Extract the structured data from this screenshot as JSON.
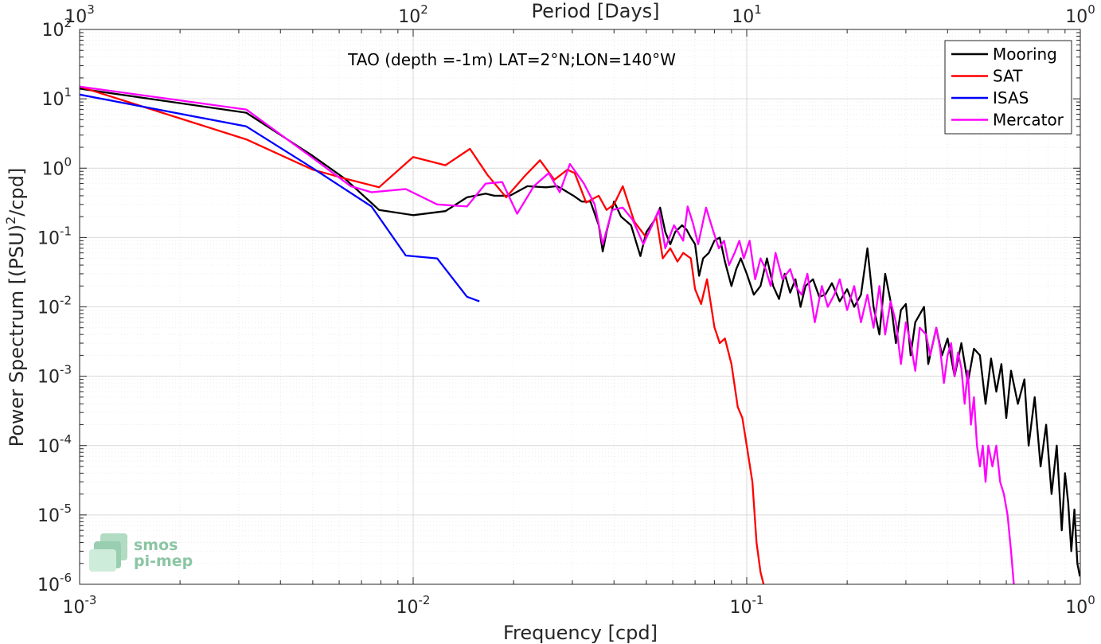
{
  "chart_data": {
    "type": "line",
    "title": "TAO (depth =-1m) LAT=2°N;LON=140°W",
    "xlabel": "Frequency [cpd]",
    "ylabel_parts": {
      "before": "Power Spectrum [(PSU)",
      "sup": "2",
      "after": "/cpd]"
    },
    "top_xlabel": "Period [Days]",
    "x_scale": "log",
    "y_scale": "log",
    "xlim": [
      0.001,
      1
    ],
    "ylim": [
      1e-06,
      100
    ],
    "grid": true,
    "minor_grid": true,
    "legend_position": "top-right",
    "x_ticks": [
      {
        "value": 0.001,
        "base": "10",
        "exp": "-3"
      },
      {
        "value": 0.01,
        "base": "10",
        "exp": "-2"
      },
      {
        "value": 0.1,
        "base": "10",
        "exp": "-1"
      },
      {
        "value": 1,
        "base": "10",
        "exp": "0"
      }
    ],
    "top_ticks": [
      {
        "value": 0.001,
        "base": "10",
        "exp": "3"
      },
      {
        "value": 0.01,
        "base": "10",
        "exp": "2"
      },
      {
        "value": 0.1,
        "base": "10",
        "exp": "1"
      },
      {
        "value": 1,
        "base": "10",
        "exp": "0"
      }
    ],
    "y_ticks": [
      {
        "value": 100,
        "base": "10",
        "exp": "2"
      },
      {
        "value": 10,
        "base": "10",
        "exp": "1"
      },
      {
        "value": 1,
        "base": "10",
        "exp": "0"
      },
      {
        "value": 0.1,
        "base": "10",
        "exp": "-1"
      },
      {
        "value": 0.01,
        "base": "10",
        "exp": "-2"
      },
      {
        "value": 0.001,
        "base": "10",
        "exp": "-3"
      },
      {
        "value": 0.0001,
        "base": "10",
        "exp": "-4"
      },
      {
        "value": 1e-05,
        "base": "10",
        "exp": "-5"
      },
      {
        "value": 1e-06,
        "base": "10",
        "exp": "-6"
      }
    ],
    "series": [
      {
        "name": "Mooring",
        "color": "#000000",
        "points": [
          [
            0.001,
            14
          ],
          [
            0.00316,
            6.3
          ],
          [
            0.005,
            1.5
          ],
          [
            0.00625,
            0.7
          ],
          [
            0.0079,
            0.25
          ],
          [
            0.01,
            0.21
          ],
          [
            0.0125,
            0.24
          ],
          [
            0.0145,
            0.38
          ],
          [
            0.0165,
            0.43
          ],
          [
            0.0175,
            0.4
          ],
          [
            0.0195,
            0.4
          ],
          [
            0.022,
            0.55
          ],
          [
            0.025,
            0.53
          ],
          [
            0.027,
            0.55
          ],
          [
            0.028,
            0.5
          ],
          [
            0.0305,
            0.39
          ],
          [
            0.032,
            0.33
          ],
          [
            0.034,
            0.33
          ],
          [
            0.036,
            0.15
          ],
          [
            0.037,
            0.063
          ],
          [
            0.038,
            0.12
          ],
          [
            0.04,
            0.33
          ],
          [
            0.042,
            0.2
          ],
          [
            0.045,
            0.15
          ],
          [
            0.048,
            0.054
          ],
          [
            0.05,
            0.12
          ],
          [
            0.053,
            0.18
          ],
          [
            0.055,
            0.27
          ],
          [
            0.057,
            0.12
          ],
          [
            0.059,
            0.08
          ],
          [
            0.061,
            0.12
          ],
          [
            0.064,
            0.15
          ],
          [
            0.066,
            0.13
          ],
          [
            0.068,
            0.1
          ],
          [
            0.07,
            0.08
          ],
          [
            0.072,
            0.028
          ],
          [
            0.074,
            0.05
          ],
          [
            0.077,
            0.06
          ],
          [
            0.08,
            0.09
          ],
          [
            0.083,
            0.1
          ],
          [
            0.086,
            0.045
          ],
          [
            0.09,
            0.02
          ],
          [
            0.093,
            0.035
          ],
          [
            0.096,
            0.05
          ],
          [
            0.1,
            0.03
          ],
          [
            0.105,
            0.015
          ],
          [
            0.11,
            0.02
          ],
          [
            0.115,
            0.05
          ],
          [
            0.12,
            0.02
          ],
          [
            0.125,
            0.013
          ],
          [
            0.13,
            0.03
          ],
          [
            0.135,
            0.016
          ],
          [
            0.14,
            0.025
          ],
          [
            0.145,
            0.01
          ],
          [
            0.15,
            0.02
          ],
          [
            0.158,
            0.025
          ],
          [
            0.165,
            0.014
          ],
          [
            0.172,
            0.015
          ],
          [
            0.18,
            0.022
          ],
          [
            0.19,
            0.012
          ],
          [
            0.2,
            0.018
          ],
          [
            0.21,
            0.01
          ],
          [
            0.22,
            0.015
          ],
          [
            0.23,
            0.07
          ],
          [
            0.24,
            0.01
          ],
          [
            0.25,
            0.004
          ],
          [
            0.26,
            0.03
          ],
          [
            0.27,
            0.012
          ],
          [
            0.28,
            0.003
          ],
          [
            0.29,
            0.009
          ],
          [
            0.3,
            0.011
          ],
          [
            0.31,
            0.002
          ],
          [
            0.32,
            0.006
          ],
          [
            0.34,
            0.01
          ],
          [
            0.35,
            0.0015
          ],
          [
            0.37,
            0.005
          ],
          [
            0.385,
            0.002
          ],
          [
            0.4,
            0.0035
          ],
          [
            0.42,
            0.001
          ],
          [
            0.44,
            0.003
          ],
          [
            0.46,
            0.0008
          ],
          [
            0.48,
            0.0025
          ],
          [
            0.5,
            0.002
          ],
          [
            0.52,
            0.0004
          ],
          [
            0.54,
            0.0018
          ],
          [
            0.56,
            0.0006
          ],
          [
            0.58,
            0.0015
          ],
          [
            0.6,
            0.00025
          ],
          [
            0.62,
            0.0012
          ],
          [
            0.65,
            0.0004
          ],
          [
            0.68,
            0.0009
          ],
          [
            0.7,
            0.0001
          ],
          [
            0.73,
            0.0005
          ],
          [
            0.76,
            5e-05
          ],
          [
            0.79,
            0.0002
          ],
          [
            0.82,
            2e-05
          ],
          [
            0.85,
            0.0001
          ],
          [
            0.88,
            6e-06
          ],
          [
            0.9,
            4e-05
          ],
          [
            0.92,
            1.5e-05
          ],
          [
            0.94,
            3e-06
          ],
          [
            0.96,
            1.2e-05
          ],
          [
            0.98,
            2e-06
          ],
          [
            0.997,
            1.3e-06
          ]
        ]
      },
      {
        "name": "SAT",
        "color": "#ff0000",
        "points": [
          [
            0.001,
            15
          ],
          [
            0.00316,
            2.6
          ],
          [
            0.005,
            0.95
          ],
          [
            0.0063,
            0.7
          ],
          [
            0.0079,
            0.53
          ],
          [
            0.01,
            1.45
          ],
          [
            0.0125,
            1.1
          ],
          [
            0.0148,
            1.9
          ],
          [
            0.0167,
            0.8
          ],
          [
            0.019,
            0.38
          ],
          [
            0.0215,
            0.75
          ],
          [
            0.024,
            1.3
          ],
          [
            0.0265,
            0.68
          ],
          [
            0.029,
            0.95
          ],
          [
            0.0305,
            0.85
          ],
          [
            0.033,
            0.32
          ],
          [
            0.036,
            0.4
          ],
          [
            0.038,
            0.25
          ],
          [
            0.04,
            0.3
          ],
          [
            0.0425,
            0.55
          ],
          [
            0.046,
            0.17
          ],
          [
            0.05,
            0.1
          ],
          [
            0.0535,
            0.2
          ],
          [
            0.056,
            0.05
          ],
          [
            0.059,
            0.07
          ],
          [
            0.062,
            0.045
          ],
          [
            0.0645,
            0.06
          ],
          [
            0.068,
            0.05
          ],
          [
            0.07,
            0.018
          ],
          [
            0.073,
            0.011
          ],
          [
            0.076,
            0.025
          ],
          [
            0.08,
            0.0051
          ],
          [
            0.083,
            0.003
          ],
          [
            0.086,
            0.0035
          ],
          [
            0.09,
            0.0015
          ],
          [
            0.094,
            0.00036
          ],
          [
            0.097,
            0.00025
          ],
          [
            0.1,
            0.0001
          ],
          [
            0.104,
            3e-05
          ],
          [
            0.107,
            4e-06
          ],
          [
            0.11,
            1.5e-06
          ],
          [
            0.113,
            9e-07
          ]
        ]
      },
      {
        "name": "ISAS",
        "color": "#0000ff",
        "points": [
          [
            0.001,
            11.5
          ],
          [
            0.00316,
            4
          ],
          [
            0.005,
            1
          ],
          [
            0.0075,
            0.28
          ],
          [
            0.0095,
            0.055
          ],
          [
            0.0118,
            0.05
          ],
          [
            0.0145,
            0.014
          ],
          [
            0.0158,
            0.012
          ]
        ]
      },
      {
        "name": "Mercator",
        "color": "#ff00ff",
        "points": [
          [
            0.001,
            15
          ],
          [
            0.00316,
            7
          ],
          [
            0.005,
            1.4
          ],
          [
            0.0065,
            0.55
          ],
          [
            0.0075,
            0.45
          ],
          [
            0.0095,
            0.5
          ],
          [
            0.0118,
            0.3
          ],
          [
            0.0145,
            0.28
          ],
          [
            0.0165,
            0.6
          ],
          [
            0.0185,
            0.63
          ],
          [
            0.0205,
            0.22
          ],
          [
            0.023,
            0.55
          ],
          [
            0.0255,
            0.85
          ],
          [
            0.0275,
            0.45
          ],
          [
            0.0295,
            1.15
          ],
          [
            0.0325,
            0.6
          ],
          [
            0.035,
            0.3
          ],
          [
            0.037,
            0.08
          ],
          [
            0.0395,
            0.25
          ],
          [
            0.0425,
            0.27
          ],
          [
            0.0455,
            0.18
          ],
          [
            0.049,
            0.08
          ],
          [
            0.052,
            0.15
          ],
          [
            0.0545,
            0.25
          ],
          [
            0.057,
            0.07
          ],
          [
            0.0605,
            0.15
          ],
          [
            0.0645,
            0.09
          ],
          [
            0.0665,
            0.28
          ],
          [
            0.069,
            0.16
          ],
          [
            0.0715,
            0.08
          ],
          [
            0.0755,
            0.27
          ],
          [
            0.0795,
            0.12
          ],
          [
            0.0825,
            0.07
          ],
          [
            0.0855,
            0.09
          ],
          [
            0.0885,
            0.04
          ],
          [
            0.092,
            0.06
          ],
          [
            0.095,
            0.09
          ],
          [
            0.098,
            0.05
          ],
          [
            0.102,
            0.09
          ],
          [
            0.106,
            0.025
          ],
          [
            0.11,
            0.05
          ],
          [
            0.114,
            0.035
          ],
          [
            0.118,
            0.02
          ],
          [
            0.122,
            0.06
          ],
          [
            0.128,
            0.025
          ],
          [
            0.135,
            0.035
          ],
          [
            0.14,
            0.02
          ],
          [
            0.146,
            0.015
          ],
          [
            0.152,
            0.03
          ],
          [
            0.16,
            0.006
          ],
          [
            0.168,
            0.02
          ],
          [
            0.175,
            0.01
          ],
          [
            0.183,
            0.015
          ],
          [
            0.19,
            0.025
          ],
          [
            0.2,
            0.009
          ],
          [
            0.21,
            0.02
          ],
          [
            0.22,
            0.006
          ],
          [
            0.23,
            0.015
          ],
          [
            0.24,
            0.005
          ],
          [
            0.25,
            0.02
          ],
          [
            0.26,
            0.004
          ],
          [
            0.27,
            0.012
          ],
          [
            0.28,
            0.006
          ],
          [
            0.29,
            0.0015
          ],
          [
            0.3,
            0.006
          ],
          [
            0.31,
            0.003
          ],
          [
            0.32,
            0.0012
          ],
          [
            0.33,
            0.005
          ],
          [
            0.345,
            0.004
          ],
          [
            0.355,
            0.002
          ],
          [
            0.37,
            0.005
          ],
          [
            0.38,
            0.0025
          ],
          [
            0.39,
            0.0008
          ],
          [
            0.4,
            0.002
          ],
          [
            0.41,
            0.003
          ],
          [
            0.42,
            0.001
          ],
          [
            0.43,
            0.0022
          ],
          [
            0.44,
            0.0013
          ],
          [
            0.45,
            0.0004
          ],
          [
            0.46,
            0.0012
          ],
          [
            0.47,
            0.0002
          ],
          [
            0.48,
            0.0005
          ],
          [
            0.49,
            0.0001
          ],
          [
            0.5,
            5e-05
          ],
          [
            0.51,
            0.0001
          ],
          [
            0.52,
            3e-05
          ],
          [
            0.53,
            0.0001
          ],
          [
            0.545,
            5e-05
          ],
          [
            0.56,
            0.0001
          ],
          [
            0.575,
            3e-05
          ],
          [
            0.59,
            2e-05
          ],
          [
            0.605,
            1e-05
          ],
          [
            0.62,
            3e-06
          ],
          [
            0.632,
            1e-06
          ]
        ]
      }
    ]
  },
  "logo": {
    "line1": "smos",
    "line2": "pi-mep"
  }
}
